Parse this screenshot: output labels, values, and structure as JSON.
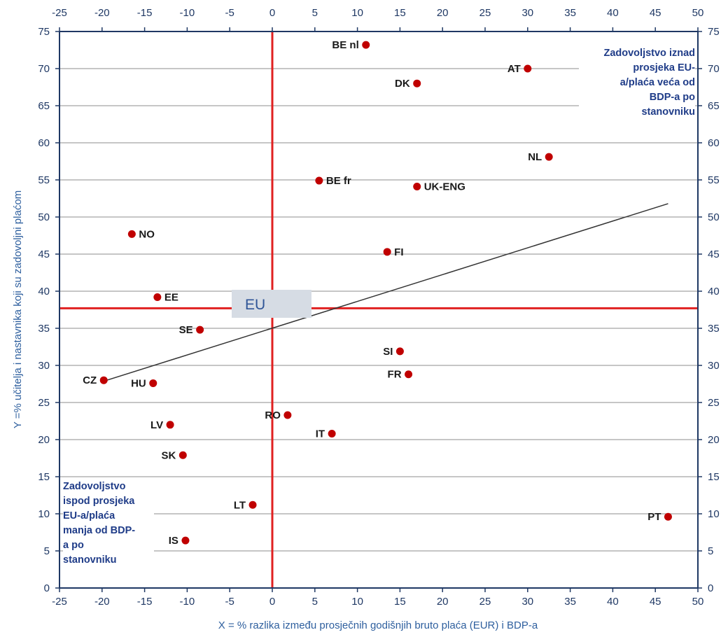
{
  "chart_data": {
    "type": "scatter",
    "xlabel": "X = % razlika između prosječnih godišnjih bruto plaća (EUR) i BDP-a",
    "ylabel": "Y =% učitelja i nastavnika koji su zadovoljni plaćom",
    "xlim": [
      -25,
      50
    ],
    "ylim": [
      0,
      75
    ],
    "x_ticks": [
      -25,
      -20,
      -15,
      -10,
      -5,
      0,
      5,
      10,
      15,
      20,
      25,
      30,
      35,
      40,
      45,
      50
    ],
    "y_ticks": [
      0,
      5,
      10,
      15,
      20,
      25,
      30,
      35,
      40,
      45,
      50,
      55,
      60,
      65,
      70,
      75
    ],
    "grid": "horizontal",
    "axes_on": [
      "top",
      "bottom",
      "left",
      "right"
    ],
    "reference_lines": {
      "x": 0,
      "y": 37.7,
      "color": "#e02020"
    },
    "eu_label": "EU",
    "trendline": {
      "x": [
        -20,
        46.5
      ],
      "y": [
        27.8,
        51.8
      ],
      "color": "#333333"
    },
    "marker_color": "#c00000",
    "points": [
      {
        "label": "BE nl",
        "x": 11,
        "y": 73.2,
        "anchor": "left"
      },
      {
        "label": "AT",
        "x": 30,
        "y": 70,
        "anchor": "left"
      },
      {
        "label": "DK",
        "x": 17,
        "y": 68,
        "anchor": "left"
      },
      {
        "label": "NL",
        "x": 32.5,
        "y": 58.1,
        "anchor": "left"
      },
      {
        "label": "BE fr",
        "x": 5.5,
        "y": 54.9,
        "anchor": "right"
      },
      {
        "label": "UK-ENG",
        "x": 17,
        "y": 54.1,
        "anchor": "right"
      },
      {
        "label": "NO",
        "x": -16.5,
        "y": 47.7,
        "anchor": "right"
      },
      {
        "label": "FI",
        "x": 13.5,
        "y": 45.3,
        "anchor": "right"
      },
      {
        "label": "EE",
        "x": -13.5,
        "y": 39.2,
        "anchor": "right"
      },
      {
        "label": "SE",
        "x": -8.5,
        "y": 34.8,
        "anchor": "left"
      },
      {
        "label": "SI",
        "x": 15,
        "y": 31.9,
        "anchor": "left"
      },
      {
        "label": "FR",
        "x": 16,
        "y": 28.8,
        "anchor": "left"
      },
      {
        "label": "CZ",
        "x": -19.8,
        "y": 28,
        "anchor": "left"
      },
      {
        "label": "HU",
        "x": -14,
        "y": 27.6,
        "anchor": "left"
      },
      {
        "label": "RO",
        "x": 1.8,
        "y": 23.3,
        "anchor": "left"
      },
      {
        "label": "LV",
        "x": -12,
        "y": 22,
        "anchor": "left"
      },
      {
        "label": "IT",
        "x": 7,
        "y": 20.8,
        "anchor": "left"
      },
      {
        "label": "SK",
        "x": -10.5,
        "y": 17.9,
        "anchor": "left"
      },
      {
        "label": "LT",
        "x": -2.3,
        "y": 11.2,
        "anchor": "left"
      },
      {
        "label": "PT",
        "x": 46.5,
        "y": 9.6,
        "anchor": "left"
      },
      {
        "label": "IS",
        "x": -10.2,
        "y": 6.4,
        "anchor": "left"
      }
    ]
  },
  "annotations": {
    "top_right": [
      "Zadovoljstvo iznad",
      "prosjeka EU-",
      "a/plaća veća od",
      "BDP-a po",
      "stanovniku"
    ],
    "bottom_left": [
      "Zadovoljstvo",
      "ispod prosjeka",
      "EU-a/plaća",
      "manja od BDP-",
      "a po",
      "stanovniku"
    ]
  }
}
